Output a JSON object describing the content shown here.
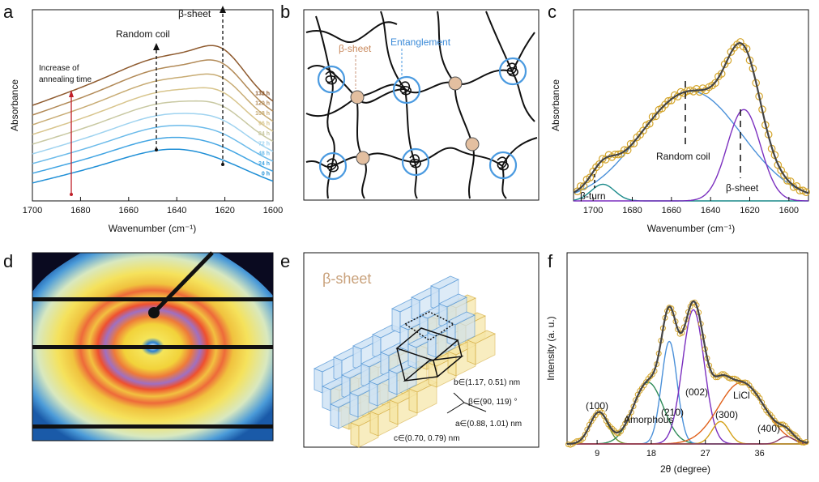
{
  "panel_labels": {
    "a": "a",
    "b": "b",
    "c": "c",
    "d": "d",
    "e": "e",
    "f": "f"
  },
  "chart_data": [
    {
      "panel": "a",
      "type": "line",
      "title": "",
      "xlabel": "Wavenumber (cm⁻¹)",
      "ylabel": "Absorbance",
      "xlim": [
        1700,
        1600
      ],
      "xticks": [
        "1700",
        "1680",
        "1660",
        "1640",
        "1620",
        "1600"
      ],
      "annotations": {
        "random_coil": "Random coil",
        "beta_sheet": "β-sheet",
        "increase": "Increase of",
        "increase2": "annealing time"
      },
      "series": [
        {
          "name": "0 h",
          "color": "#1f8fd6",
          "offset": 0
        },
        {
          "name": "24 h",
          "color": "#42a5e3",
          "offset": 1
        },
        {
          "name": "48 h",
          "color": "#6cbbea",
          "offset": 2
        },
        {
          "name": "72 h",
          "color": "#9fd3f0",
          "offset": 3
        },
        {
          "name": "84 h",
          "color": "#c9c9a3",
          "offset": 4
        },
        {
          "name": "96 h",
          "color": "#d8c58d",
          "offset": 5
        },
        {
          "name": "108 h",
          "color": "#c8ac74",
          "offset": 6
        },
        {
          "name": "120 h",
          "color": "#b28a57",
          "offset": 7
        },
        {
          "name": "132 h",
          "color": "#8e5a2e",
          "offset": 8
        }
      ]
    },
    {
      "panel": "c",
      "type": "line",
      "xlabel": "Wavenumber (cm⁻¹)",
      "ylabel": "Absorbance",
      "xlim": [
        1710,
        1590
      ],
      "xticks": [
        "1700",
        "1680",
        "1660",
        "1640",
        "1620",
        "1600"
      ],
      "components": [
        {
          "name": "β-turn",
          "center": 1695,
          "color": "#1a8a8a"
        },
        {
          "name": "Random coil",
          "center": 1650,
          "color": "#4a90d9"
        },
        {
          "name": "β-sheet",
          "center": 1623,
          "color": "#7b2fbf"
        }
      ]
    },
    {
      "panel": "f",
      "type": "line",
      "xlabel": "2θ (degree)",
      "ylabel": "Intensity (a. u.)",
      "xlim": [
        4,
        44
      ],
      "xticks": [
        "9",
        "18",
        "27",
        "36"
      ],
      "peaks": [
        {
          "name": "(100)",
          "center": 9.3,
          "color": "#6b8e23"
        },
        {
          "name": "Amorphous",
          "center": 17.5,
          "color": "#2e8b57"
        },
        {
          "name": "(210)",
          "center": 21,
          "color": "#4a90d9"
        },
        {
          "name": "(002)",
          "center": 25,
          "color": "#7b2fbf"
        },
        {
          "name": "(300)",
          "center": 29.5,
          "color": "#d4a017"
        },
        {
          "name": "LiCl",
          "center": 33,
          "color": "#e0601a"
        },
        {
          "name": "(400)",
          "center": 40.5,
          "color": "#8b3a62"
        }
      ]
    }
  ],
  "panel_b": {
    "beta_sheet": "β-sheet",
    "entanglement": "Entanglement"
  },
  "panel_e": {
    "title": "β-sheet",
    "b_range": "b∈(1.17, 0.51) nm",
    "beta_range": "β∈(90, 119) °",
    "a_range": "a∈(0.88, 1.01) nm",
    "c_range": "c∈(0.70, 0.79) nm"
  }
}
